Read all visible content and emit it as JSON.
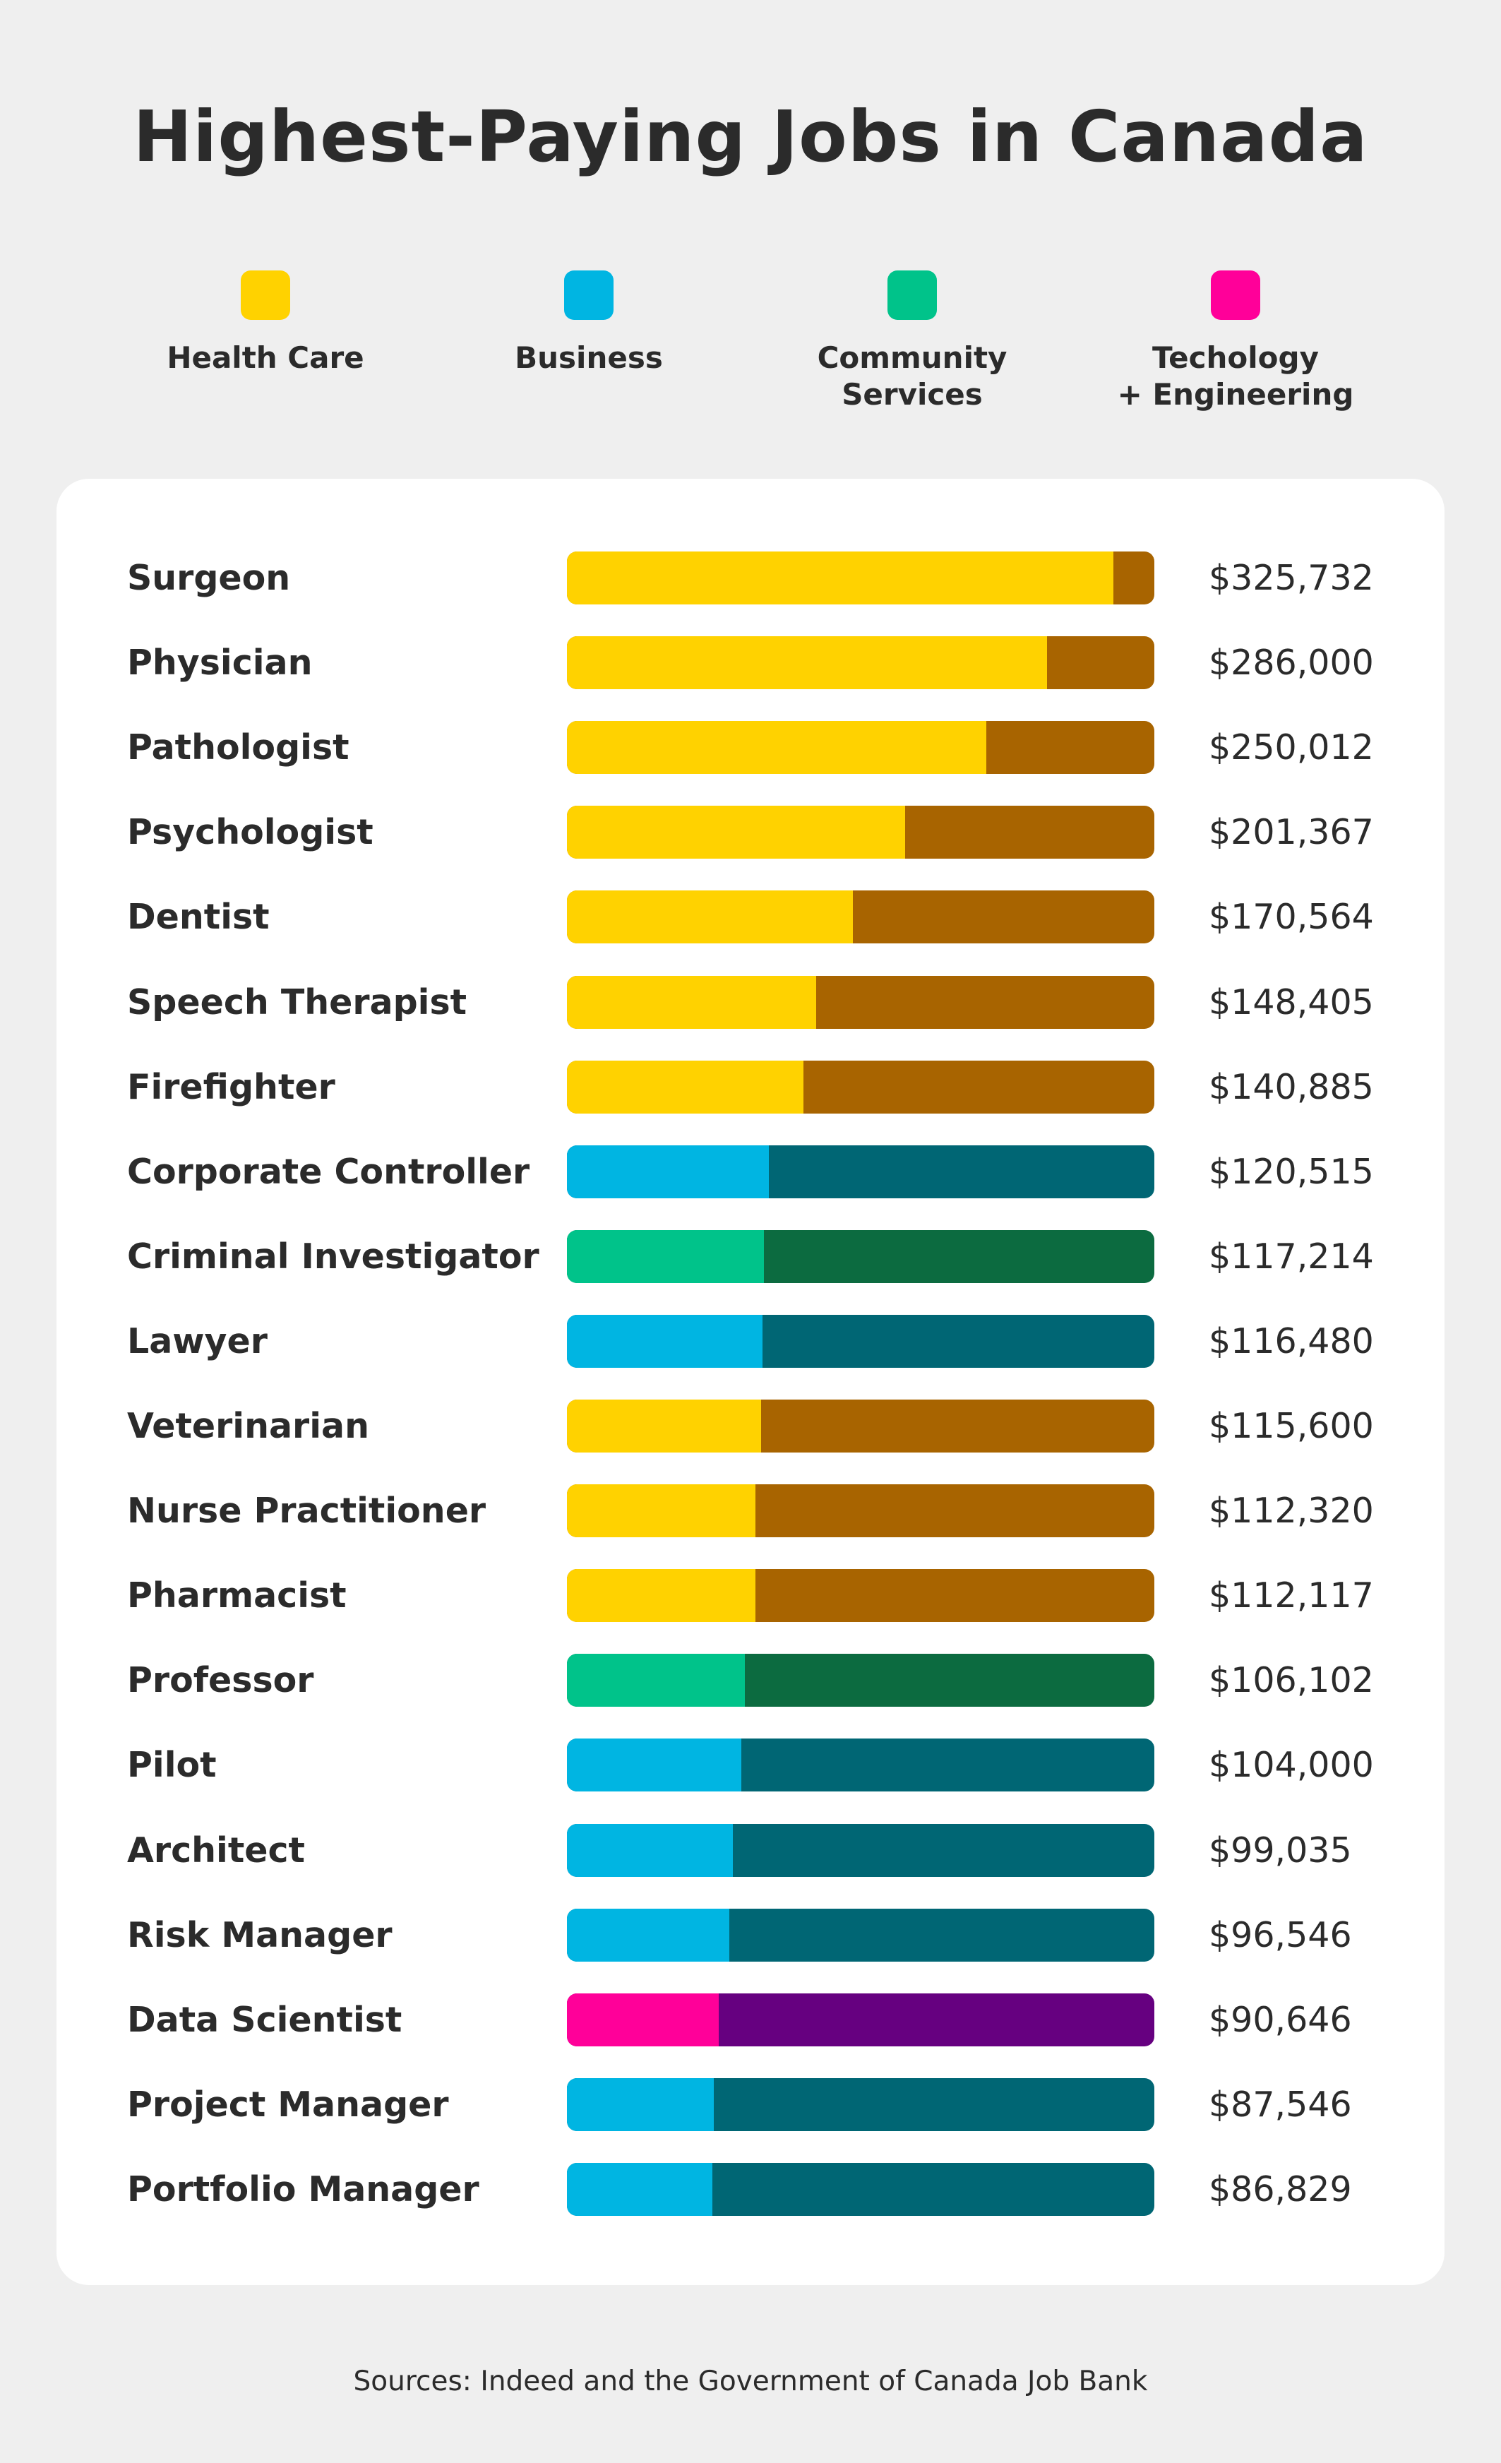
{
  "chart_data": {
    "type": "bar",
    "orientation": "horizontal",
    "title": "Highest-Paying Jobs in Canada",
    "xlim": [
      0,
      350000
    ],
    "grid": false,
    "legend_placement": "top",
    "legend": [
      {
        "name": "Health Care",
        "color": "#FFD200",
        "track_color": "#A86400"
      },
      {
        "name": "Business",
        "color": "#00B5E2",
        "track_color": "#006674"
      },
      {
        "name": "Community\nServices",
        "color": "#00C38A",
        "track_color": "#0C6B40"
      },
      {
        "name": "Techology\n+ Engineering",
        "color": "#FF0099",
        "track_color": "#660080"
      }
    ],
    "rows": [
      {
        "job": "Surgeon",
        "value": 325732,
        "label": "$325,732",
        "category": 0
      },
      {
        "job": "Physician",
        "value": 286000,
        "label": "$286,000",
        "category": 0
      },
      {
        "job": "Pathologist",
        "value": 250012,
        "label": "$250,012",
        "category": 0
      },
      {
        "job": "Psychologist",
        "value": 201367,
        "label": "$201,367",
        "category": 0
      },
      {
        "job": "Dentist",
        "value": 170564,
        "label": "$170,564",
        "category": 0
      },
      {
        "job": "Speech Therapist",
        "value": 148405,
        "label": "$148,405",
        "category": 0
      },
      {
        "job": "Firefighter",
        "value": 140885,
        "label": "$140,885",
        "category": 0
      },
      {
        "job": "Corporate Controller",
        "value": 120515,
        "label": "$120,515",
        "category": 1
      },
      {
        "job": "Criminal Investigator",
        "value": 117214,
        "label": "$117,214",
        "category": 2
      },
      {
        "job": "Lawyer",
        "value": 116480,
        "label": "$116,480",
        "category": 1
      },
      {
        "job": "Veterinarian",
        "value": 115600,
        "label": "$115,600",
        "category": 0
      },
      {
        "job": "Nurse Practitioner",
        "value": 112320,
        "label": "$112,320",
        "category": 0
      },
      {
        "job": "Pharmacist",
        "value": 112117,
        "label": "$112,117",
        "category": 0
      },
      {
        "job": "Professor",
        "value": 106102,
        "label": "$106,102",
        "category": 2
      },
      {
        "job": "Pilot",
        "value": 104000,
        "label": "$104,000",
        "category": 1
      },
      {
        "job": "Architect",
        "value": 99035,
        "label": "$99,035",
        "category": 1
      },
      {
        "job": "Risk Manager",
        "value": 96546,
        "label": "$96,546",
        "category": 1
      },
      {
        "job": "Data Scientist",
        "value": 90646,
        "label": "$90,646",
        "category": 3
      },
      {
        "job": "Project Manager",
        "value": 87546,
        "label": "$87,546",
        "category": 1
      },
      {
        "job": "Portfolio Manager",
        "value": 86829,
        "label": "$86,829",
        "category": 1
      }
    ],
    "source": "Sources: Indeed and the Government of Canada Job Bank"
  }
}
